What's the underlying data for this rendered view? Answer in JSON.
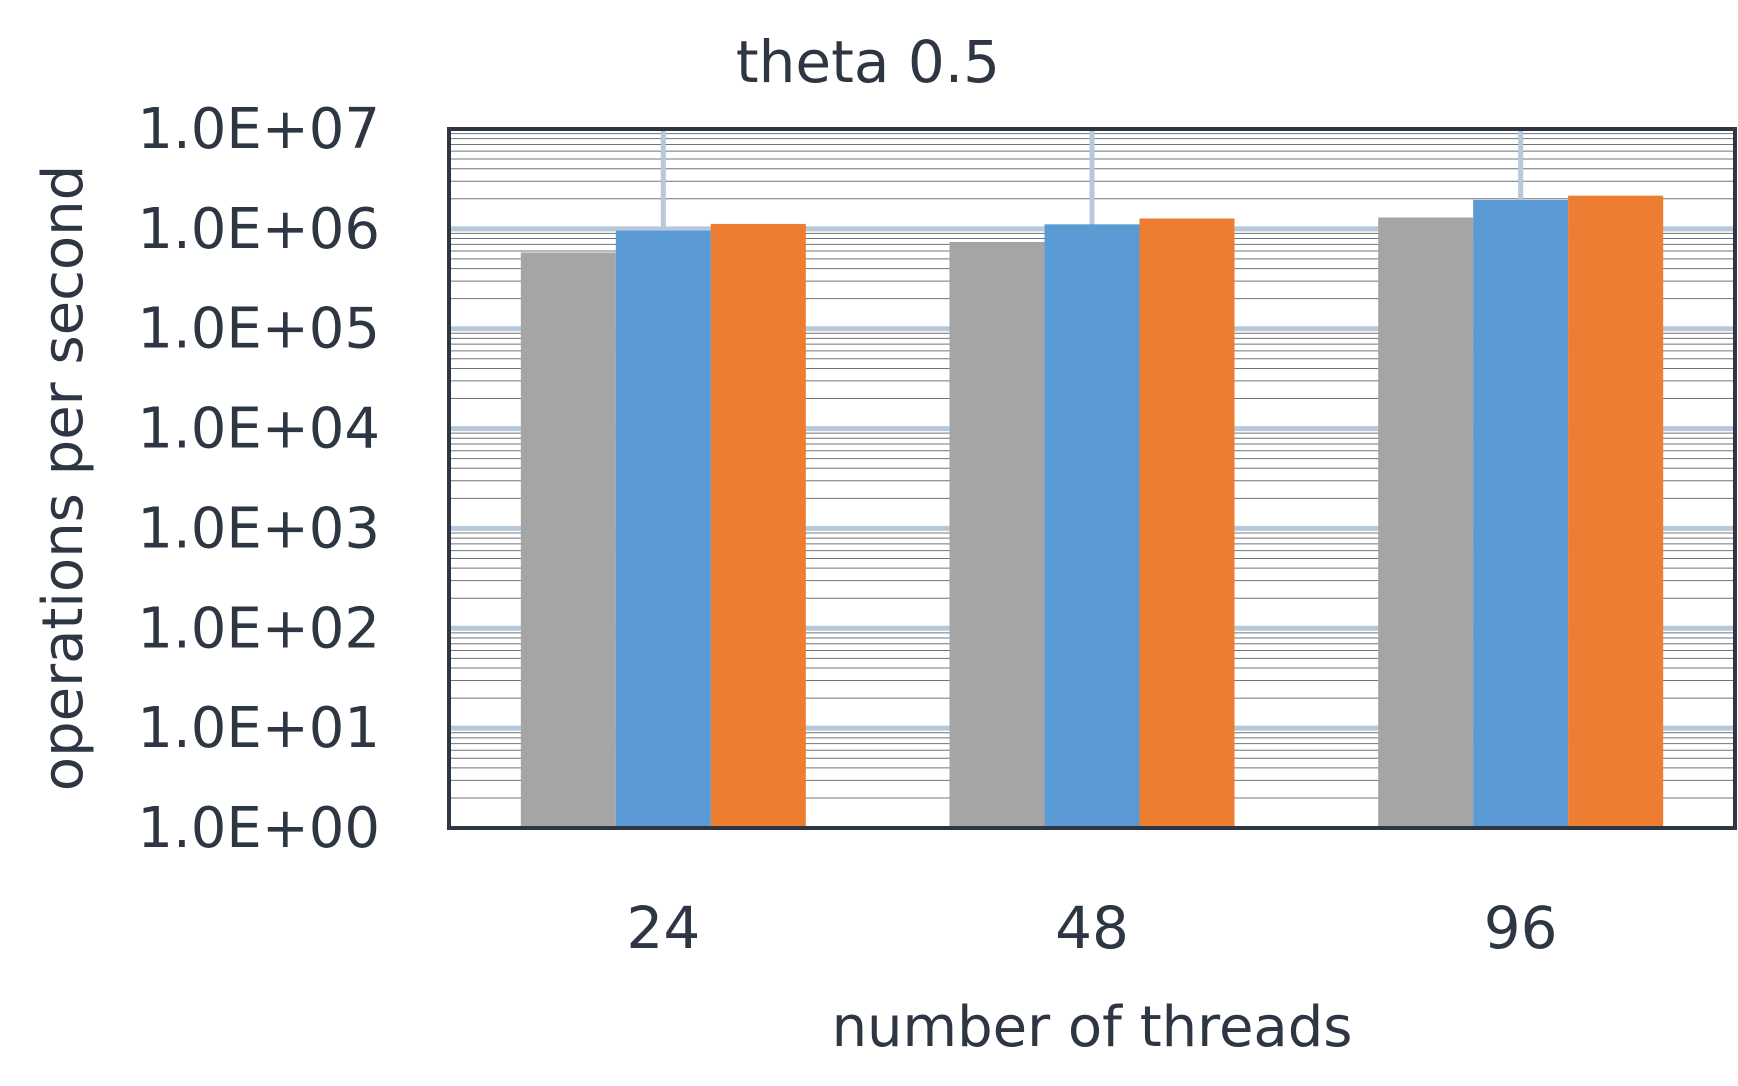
{
  "chart_data": {
    "type": "bar",
    "title": "theta 0.5",
    "xlabel": "number of threads",
    "ylabel": "operations per second",
    "categories": [
      "24",
      "48",
      "96"
    ],
    "y_scale": "log",
    "ylim": [
      1,
      10000000
    ],
    "y_ticks": [
      {
        "value": 1,
        "label": "1.0E+00"
      },
      {
        "value": 10,
        "label": "1.0E+01"
      },
      {
        "value": 100,
        "label": "1.0E+02"
      },
      {
        "value": 1000,
        "label": "1.0E+03"
      },
      {
        "value": 10000,
        "label": "1.0E+04"
      },
      {
        "value": 100000,
        "label": "1.0E+05"
      },
      {
        "value": 1000000,
        "label": "1.0E+06"
      },
      {
        "value": 10000000,
        "label": "1.0E+07"
      }
    ],
    "grid": true,
    "legend": "none",
    "series": [
      {
        "color": "#a5a5a5",
        "values": [
          580000,
          740000,
          1300000
        ]
      },
      {
        "color": "#5b9bd5",
        "values": [
          960000,
          1110000,
          1950000
        ]
      },
      {
        "color": "#ed7d31",
        "values": [
          1120000,
          1270000,
          2150000
        ]
      }
    ]
  },
  "colors": {
    "axis": "#2f3643",
    "major_grid": "#b8c8db",
    "minor_grid": "#3a3f47",
    "text": "#2f3643"
  }
}
